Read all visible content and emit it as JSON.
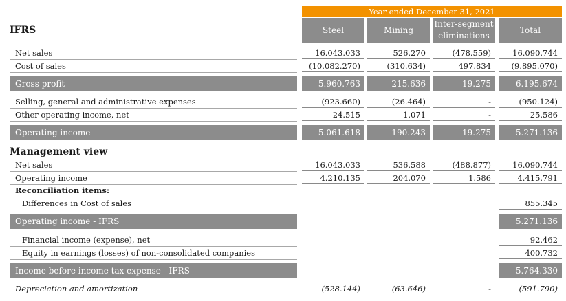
{
  "header": {
    "period": "Year ended December 31, 2021",
    "columns": [
      "Steel",
      "Mining",
      "Inter-segment eliminations",
      "Total"
    ]
  },
  "ifrs_title": "IFRS",
  "rows": {
    "net_sales": {
      "label": "Net sales",
      "values": [
        "16.043.033",
        "526.270",
        "(478.559)",
        "16.090.744"
      ]
    },
    "cost_of_sales": {
      "label": "Cost of sales",
      "values": [
        "(10.082.270)",
        "(310.634)",
        "497.834",
        "(9.895.070)"
      ]
    },
    "gross_profit": {
      "label": "Gross profit",
      "values": [
        "5.960.763",
        "215.636",
        "19.275",
        "6.195.674"
      ]
    },
    "sga": {
      "label": "Selling, general and administrative expenses",
      "values": [
        "(923.660)",
        "(26.464)",
        "-",
        "(950.124)"
      ]
    },
    "other_income": {
      "label": "Other operating income, net",
      "values": [
        "24.515",
        "1.071",
        "-",
        "25.586"
      ]
    },
    "operating_income": {
      "label": "Operating income",
      "values": [
        "5.061.618",
        "190.243",
        "19.275",
        "5.271.136"
      ]
    }
  },
  "management": {
    "title": "Management view",
    "net_sales": {
      "label": "Net sales",
      "values": [
        "16.043.033",
        "536.588",
        "(488.877)",
        "16.090.744"
      ]
    },
    "operating_income": {
      "label": "Operating income",
      "values": [
        "4.210.135",
        "204.070",
        "1.586",
        "4.415.791"
      ]
    },
    "reconciliation_label": "Reconciliation items:",
    "diff_cost_of_sales": {
      "label": "Differences in Cost of sales",
      "total": "855.345"
    },
    "operating_income_ifrs": {
      "label": "Operating income - IFRS",
      "total": "5.271.136"
    },
    "financial_income": {
      "label": "Financial income (expense), net",
      "total": "92.462"
    },
    "equity_earnings": {
      "label": "Equity in earnings (losses) of non-consolidated companies",
      "total": "400.732"
    },
    "income_before_tax": {
      "label": "Income before income tax expense - IFRS",
      "total": "5.764.330"
    }
  },
  "depreciation": {
    "label": "Depreciation and amortization",
    "values": [
      "(528.144)",
      "(63.646)",
      "-",
      "(591.790)"
    ]
  },
  "colors": {
    "accent": "#f39200",
    "header_gray": "#8c8c8c"
  }
}
